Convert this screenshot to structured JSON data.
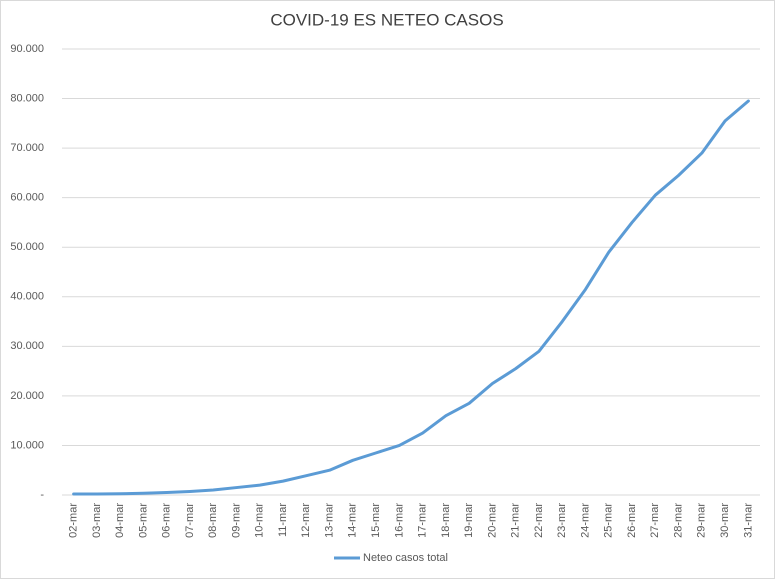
{
  "chart_data": {
    "type": "line",
    "title": "COVID-19 ES NETEO CASOS",
    "categories": [
      "02-mar",
      "03-mar",
      "04-mar",
      "05-mar",
      "06-mar",
      "07-mar",
      "08-mar",
      "09-mar",
      "10-mar",
      "11-mar",
      "12-mar",
      "13-mar",
      "14-mar",
      "15-mar",
      "16-mar",
      "17-mar",
      "18-mar",
      "19-mar",
      "20-mar",
      "21-mar",
      "22-mar",
      "23-mar",
      "24-mar",
      "25-mar",
      "26-mar",
      "27-mar",
      "28-mar",
      "29-mar",
      "30-mar",
      "31-mar"
    ],
    "series": [
      {
        "name": "Neteo casos total",
        "color": "#5b9bd5",
        "values": [
          200,
          200,
          250,
          350,
          500,
          700,
          1000,
          1500,
          2000,
          2800,
          3900,
          5000,
          7000,
          8500,
          10000,
          12500,
          16000,
          18500,
          22500,
          25500,
          29000,
          35000,
          41500,
          49000,
          55000,
          60500,
          64500,
          69000,
          75500,
          79500
        ]
      }
    ],
    "ylim": [
      0,
      90000
    ],
    "yticks": [
      {
        "value": 0,
        "label": "-"
      },
      {
        "value": 10000,
        "label": "10.000"
      },
      {
        "value": 20000,
        "label": "20.000"
      },
      {
        "value": 30000,
        "label": "30.000"
      },
      {
        "value": 40000,
        "label": "40.000"
      },
      {
        "value": 50000,
        "label": "50.000"
      },
      {
        "value": 60000,
        "label": "60.000"
      },
      {
        "value": 70000,
        "label": "70.000"
      },
      {
        "value": 80000,
        "label": "80.000"
      },
      {
        "value": 90000,
        "label": "90.000"
      }
    ],
    "grid": true,
    "legend": "bottom"
  }
}
